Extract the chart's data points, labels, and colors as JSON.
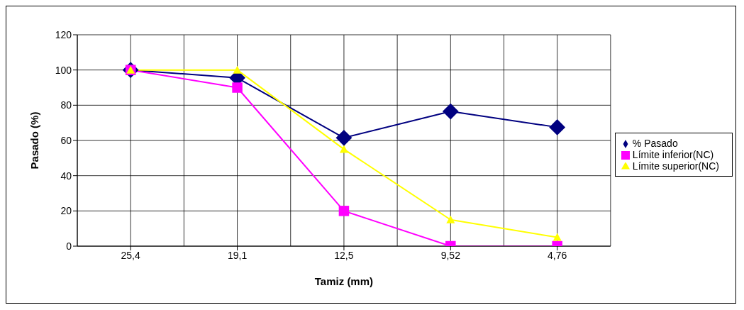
{
  "chart_data": {
    "type": "line",
    "xlabel": "Tamiz (mm)",
    "ylabel": "Pasado (%)",
    "categories": [
      "25,4",
      "19,1",
      "12,5",
      "9,52",
      "4,76"
    ],
    "series": [
      {
        "name": "% Pasado",
        "color": "#000080",
        "marker": "diamond",
        "values": [
          100,
          95.5,
          61.5,
          76.5,
          67.5
        ]
      },
      {
        "name": "Límite inferior(NC)",
        "color": "#ff00ff",
        "marker": "square",
        "values": [
          100,
          90,
          20,
          0,
          0
        ]
      },
      {
        "name": "Límite superior(NC)",
        "color": "#ffff00",
        "marker": "triangle",
        "values": [
          100,
          100,
          55,
          15,
          5
        ]
      }
    ],
    "ylim": [
      0,
      120
    ],
    "yticks": [
      0,
      20,
      40,
      60,
      80,
      100,
      120
    ],
    "grid": true,
    "legend": "right"
  }
}
